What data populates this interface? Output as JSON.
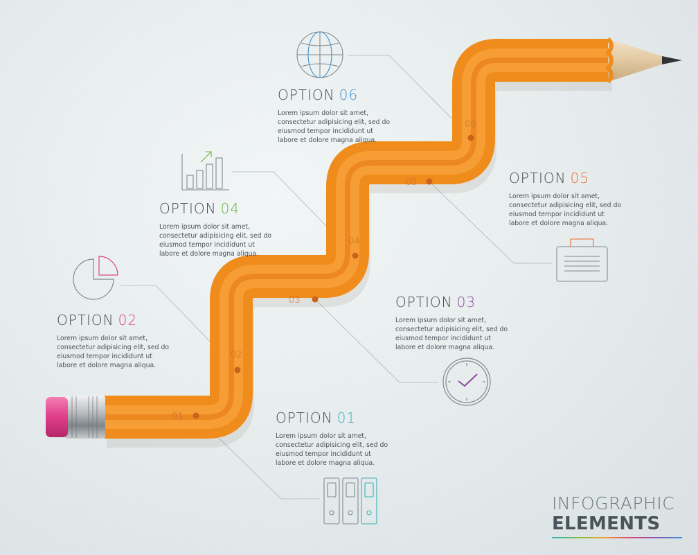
{
  "options": [
    {
      "label": "OPTION",
      "number": "01",
      "color": "#3bb0b5",
      "description": "Lorem ipsum dolor sit amet, consectetur adipisicing elit, sed do eiusmod tempor incididunt ut labore et dolore magna aliqua."
    },
    {
      "label": "OPTION",
      "number": "02",
      "color": "#e0457a",
      "description": "Lorem ipsum dolor sit amet, consectetur adipisicing elit, sed do eiusmod tempor incididunt ut labore et dolore magna aliqua."
    },
    {
      "label": "OPTION",
      "number": "03",
      "color": "#8e4b9e",
      "description": "Lorem ipsum dolor sit amet, consectetur adipisicing elit, sed do eiusmod tempor incididunt ut labore et dolore magna aliqua."
    },
    {
      "label": "OPTION",
      "number": "04",
      "color": "#6ab43e",
      "description": "Lorem ipsum dolor sit amet, consectetur adipisicing elit, sed do eiusmod tempor incididunt ut labore et dolore magna aliqua."
    },
    {
      "label": "OPTION",
      "number": "05",
      "color": "#ec6a2a",
      "description": "Lorem ipsum dolor sit amet, consectetur adipisicing elit, sed do eiusmod tempor incididunt ut labore et dolore magna aliqua."
    },
    {
      "label": "OPTION",
      "number": "06",
      "color": "#3f8fcf",
      "description": "Lorem ipsum dolor sit amet, consectetur adipisicing elit, sed do eiusmod tempor incididunt ut labore et dolore magna aliqua."
    }
  ],
  "pencil_markers": [
    "01",
    "02",
    "03",
    "04",
    "05",
    "06"
  ],
  "icons": [
    "binders-icon",
    "pie-chart-icon",
    "clock-check-icon",
    "bar-chart-growth-icon",
    "briefcase-icon",
    "globe-icon"
  ],
  "brand": {
    "line1": "INFOGRAPHIC",
    "line2": "ELEMENTS"
  },
  "colors": {
    "pencil": "#f08c1c",
    "pencil_dark": "#e0700e",
    "eraser": "#e2428c",
    "background": "#e4eaeb",
    "text": "#3e4a52"
  }
}
